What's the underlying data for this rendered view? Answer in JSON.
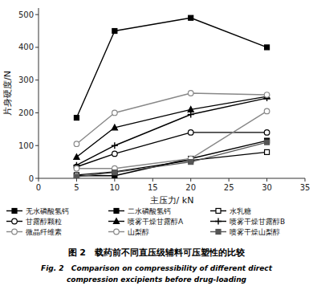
{
  "chart_data": {
    "type": "line",
    "x": [
      5,
      10,
      20,
      30
    ],
    "series": [
      {
        "name": "无水磷酸氢钙",
        "color": "#000000",
        "marker": "filled-square",
        "values": [
          8,
          8,
          60,
          115
        ]
      },
      {
        "name": "二水磷酸氢钙",
        "color": "#000000",
        "marker": "filled-square",
        "values": [
          185,
          450,
          490,
          400
        ]
      },
      {
        "name": "水乳糖",
        "color": "#000000",
        "marker": "open-square",
        "values": [
          10,
          20,
          55,
          80
        ]
      },
      {
        "name": "甘露醇颗粒",
        "color": "#000000",
        "marker": "open-circle",
        "values": [
          35,
          75,
          140,
          140
        ]
      },
      {
        "name": "喷雾干燥甘露醇A",
        "color": "#000000",
        "marker": "filled-triangle",
        "values": [
          65,
          155,
          210,
          250
        ]
      },
      {
        "name": "喷雾干燥甘露醇B",
        "color": "#000000",
        "marker": "plus",
        "values": [
          40,
          100,
          195,
          245
        ]
      },
      {
        "name": "微晶纤维素",
        "color": "#888888",
        "marker": "open-circle",
        "values": [
          105,
          200,
          260,
          255
        ]
      },
      {
        "name": "山梨醇",
        "color": "#888888",
        "marker": "open-circle",
        "values": [
          30,
          30,
          60,
          205
        ]
      },
      {
        "name": "喷雾干燥山梨醇",
        "color": "#555555",
        "marker": "filled-square",
        "values": [
          5,
          18,
          50,
          110
        ]
      }
    ],
    "xlabel": "主压力/ kN",
    "ylabel": "片身硬度/N",
    "xlim": [
      0,
      35
    ],
    "ylim": [
      0,
      520
    ],
    "xticks": [
      0,
      5,
      10,
      15,
      20,
      25,
      30,
      35
    ],
    "yticks": [
      0,
      100,
      200,
      300,
      400,
      500
    ],
    "grid": false,
    "legend": "bottom",
    "annotations": [
      "图 2   载药前不同直压级辅料可压塑性的比较",
      "Fig. 2   Comparison on compressibility of different direct",
      "compression excipients before drug-loading"
    ]
  }
}
